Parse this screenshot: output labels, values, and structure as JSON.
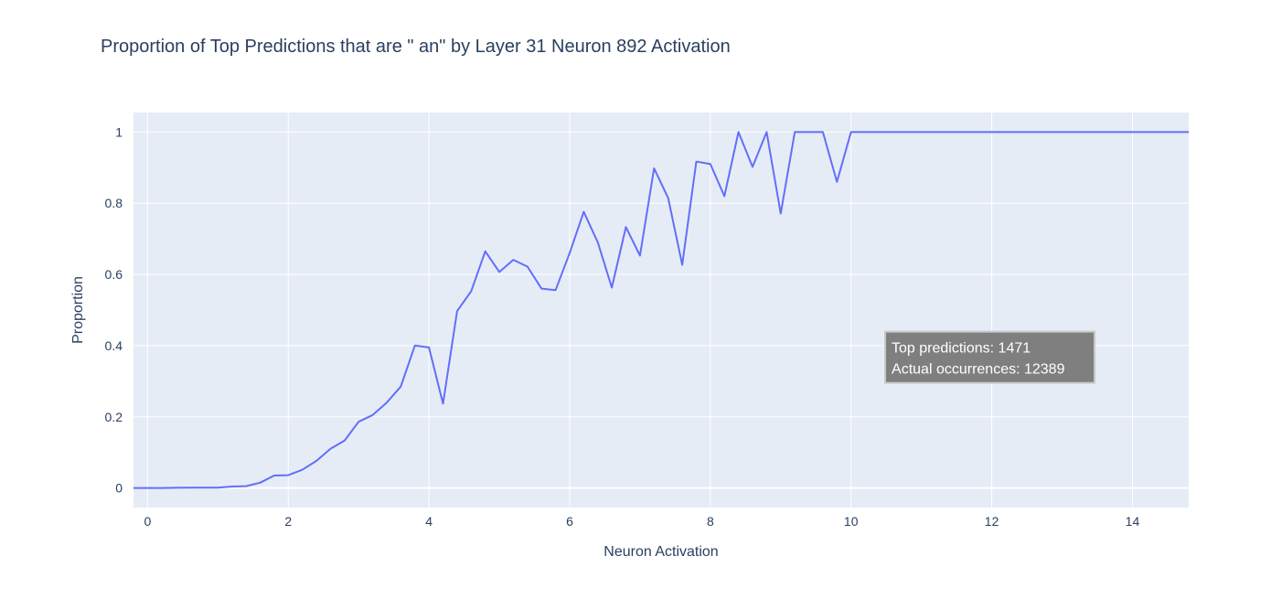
{
  "chart_data": {
    "type": "line",
    "title": "Proportion of Top Predictions that are \" an\" by Layer 31 Neuron 892 Activation",
    "xlabel": "Neuron Activation",
    "ylabel": "Proportion",
    "xlim": [
      -0.2,
      14.8
    ],
    "ylim": [
      -0.055,
      1.055
    ],
    "grid": true,
    "legend": "none",
    "x_ticks": [
      0,
      2,
      4,
      6,
      8,
      10,
      12,
      14
    ],
    "y_ticks": [
      0,
      0.2,
      0.4,
      0.6,
      0.8,
      1
    ],
    "x_tick_labels": [
      "0",
      "2",
      "4",
      "6",
      "8",
      "10",
      "12",
      "14"
    ],
    "y_tick_labels": [
      "0",
      "0.2",
      "0.4",
      "0.6",
      "0.8",
      "1"
    ],
    "series": [
      {
        "color": "#636efa",
        "x": [
          -0.2,
          0,
          0.2,
          0.4,
          0.6,
          0.8,
          1.0,
          1.2,
          1.4,
          1.6,
          1.8,
          2.0,
          2.2,
          2.4,
          2.6,
          2.8,
          3.0,
          3.2,
          3.4,
          3.6,
          3.8,
          4.0,
          4.2,
          4.4,
          4.6,
          4.8,
          5.0,
          5.2,
          5.4,
          5.6,
          5.8,
          6.0,
          6.2,
          6.4,
          6.6,
          6.8,
          7.0,
          7.2,
          7.4,
          7.6,
          7.8,
          8.0,
          8.2,
          8.4,
          8.6,
          8.8,
          9.0,
          9.2,
          9.4,
          9.6,
          9.8,
          10.0,
          10.2,
          10.4,
          10.6,
          10.8,
          11.0,
          11.2,
          11.4,
          11.6,
          11.8,
          12.0,
          12.2,
          12.4,
          12.6,
          12.8,
          13.0,
          13.2,
          13.4,
          13.6,
          13.8,
          14.0,
          14.2,
          14.4,
          14.6,
          14.8
        ],
        "values": [
          0,
          0,
          0,
          0.0005,
          0.001,
          0.001,
          0.001,
          0.004,
          0.005,
          0.015,
          0.035,
          0.036,
          0.051,
          0.076,
          0.11,
          0.133,
          0.186,
          0.205,
          0.24,
          0.285,
          0.4,
          0.395,
          0.237,
          0.497,
          0.553,
          0.665,
          0.607,
          0.641,
          0.622,
          0.56,
          0.556,
          0.66,
          0.776,
          0.69,
          0.563,
          0.733,
          0.653,
          0.898,
          0.815,
          0.627,
          0.917,
          0.91,
          0.82,
          1.0,
          0.902,
          1.0,
          0.771,
          1.0,
          1.0,
          1.0,
          0.86,
          1.0,
          1.0,
          1.0,
          1.0,
          1.0,
          1.0,
          1.0,
          1.0,
          1.0,
          1.0,
          1.0,
          1.0,
          1.0,
          1.0,
          1.0,
          1.0,
          1.0,
          1.0,
          1.0,
          1.0,
          1.0,
          1.0,
          1.0,
          1.0,
          1.0
        ]
      }
    ],
    "annotation": {
      "line1": "Top predictions: 1471",
      "line2": "Actual occurrences: 12389",
      "x": 10.55,
      "y": 0.195
    }
  }
}
